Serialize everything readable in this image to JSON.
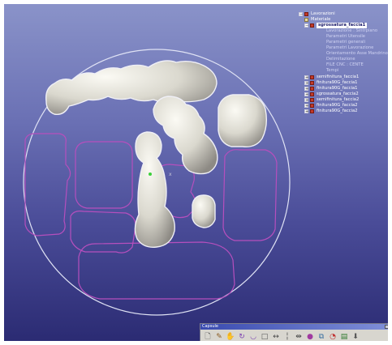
{
  "tree": {
    "root": "Lavorazioni",
    "materiale": "Materiale",
    "selected": "sgrossatura_faccia1",
    "children": [
      "Lavorazione : Sintrpiano",
      "Parametri Utensile",
      "Parametri generali",
      "Parametri Lavorazione",
      "Orientamento Asse Mandrino",
      "Delimitazione",
      "FILE CNC : CENTE",
      "Tempi"
    ],
    "siblings": [
      "semifinitura_faccia1",
      "finitura90G_faccia1",
      "finitura90G_faccia1",
      "sgrossatura_faccia2",
      "semifinitura_faccia2",
      "finitura90G_faccia2",
      "finitura90G_faccia2"
    ]
  },
  "palette": {
    "title": "Capsule",
    "tools": [
      "new-file-icon",
      "pencil-icon",
      "hand-icon",
      "rotate-icon",
      "arc-icon",
      "square-icon",
      "arrows-h-icon",
      "line-icon",
      "measure-icon",
      "sphere-icon",
      "copy-icon",
      "pipe-icon",
      "report-icon",
      "export-icon"
    ]
  },
  "colors": {
    "bg_top": "#8a93c9",
    "bg_bottom": "#2b2b73",
    "disc_outline": "#dfe2f4",
    "contour": "#b64fbd",
    "teeth": "#e6e4dc"
  }
}
